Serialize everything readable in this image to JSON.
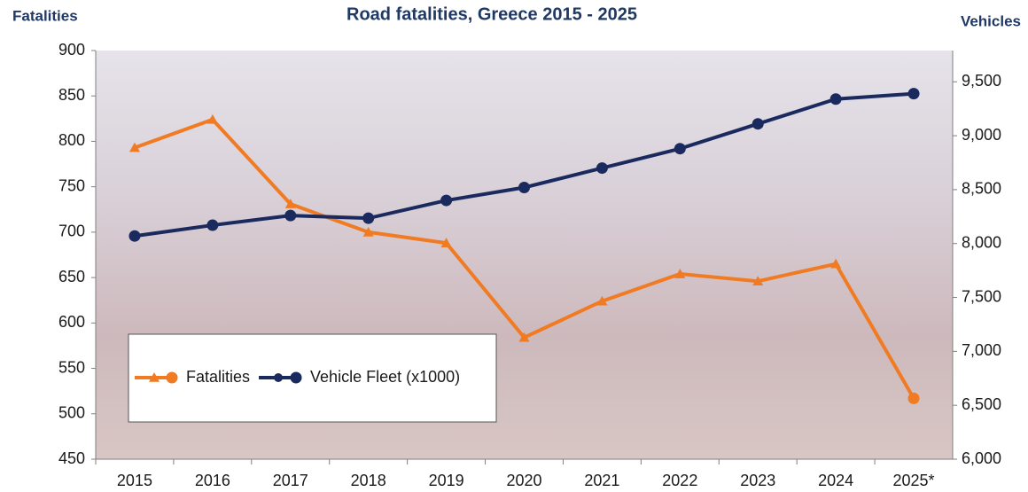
{
  "chart_data": {
    "type": "line",
    "title": "Road fatalities, Greece 2015 - 2025",
    "y_label": "Fatalities",
    "y2_label": "Vehicles",
    "categories": [
      "2015",
      "2016",
      "2017",
      "2018",
      "2019",
      "2020",
      "2021",
      "2022",
      "2023",
      "2024",
      "2025*"
    ],
    "series": [
      {
        "name": "Fatalities",
        "color": "#f07b23",
        "values": [
          793,
          824,
          731,
          700,
          688,
          584,
          624,
          654,
          646,
          665,
          517
        ]
      },
      {
        "name": "Vehicle Fleet (x1000)",
        "color": "#1b2a5e",
        "axis": "y2",
        "values": [
          8070,
          8170,
          8260,
          8235,
          8400,
          8520,
          8700,
          8880,
          9110,
          9340,
          9390
        ]
      }
    ],
    "ylim": [
      450,
      900
    ],
    "yticks": [
      450,
      500,
      550,
      600,
      650,
      700,
      750,
      800,
      850,
      900
    ],
    "y2lim": [
      6000,
      9790
    ],
    "y2ticks": [
      {
        "value": 6000,
        "label": "6,000"
      },
      {
        "value": 6500,
        "label": "6,500"
      },
      {
        "value": 7000,
        "label": "7,000"
      },
      {
        "value": 7500,
        "label": "7,500"
      },
      {
        "value": 8000,
        "label": "8,000"
      },
      {
        "value": 8500,
        "label": "8,500"
      },
      {
        "value": 9000,
        "label": "9,000"
      },
      {
        "value": 9500,
        "label": "9,500"
      }
    ],
    "legend": "lower-left"
  }
}
